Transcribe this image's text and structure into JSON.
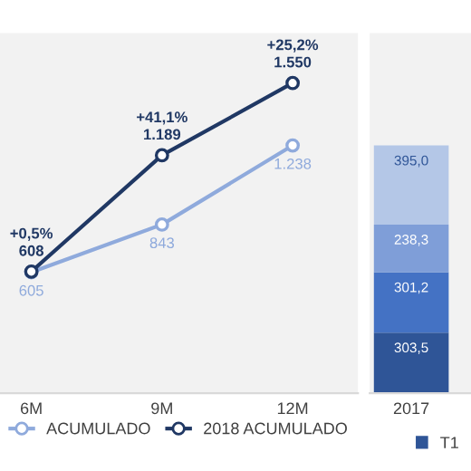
{
  "chart_data": [
    {
      "type": "line",
      "categories": [
        "6M",
        "9M",
        "12M"
      ],
      "ylim": [
        0,
        1800
      ],
      "marker": "circle",
      "line_style": "solid",
      "grid": false,
      "legend": "bottom",
      "tick_labels": "x",
      "series": [
        {
          "name": "ACUMULADO",
          "color": "#8faadc",
          "values": [
            605,
            843,
            1238
          ],
          "value_labels": [
            "605",
            "843",
            "1.238"
          ]
        },
        {
          "name": "2018 ACUMULADO",
          "color": "#203864",
          "values": [
            608,
            1189,
            1550
          ],
          "value_labels": [
            "+0,5%\n608",
            "+41,1%\n1.189",
            "+25,2%\n1.550"
          ]
        }
      ]
    },
    {
      "type": "bar",
      "stacked": true,
      "categories": [
        "2017"
      ],
      "ylim": [
        0,
        1800
      ],
      "grid": false,
      "legend": "bottom",
      "tick_labels": "x",
      "series": [
        {
          "name": "T1",
          "color": "#2f5597",
          "values": [
            303.5
          ],
          "value_labels": [
            "303,5"
          ]
        },
        {
          "color": "#4472c4",
          "values": [
            301.2
          ],
          "value_labels": [
            "301,2"
          ]
        },
        {
          "color": "#7f9ed8",
          "values": [
            238.3
          ],
          "value_labels": [
            "238,3"
          ]
        },
        {
          "color": "#b4c7e7",
          "values": [
            395.0
          ],
          "value_labels": [
            "395,0"
          ]
        }
      ]
    }
  ]
}
